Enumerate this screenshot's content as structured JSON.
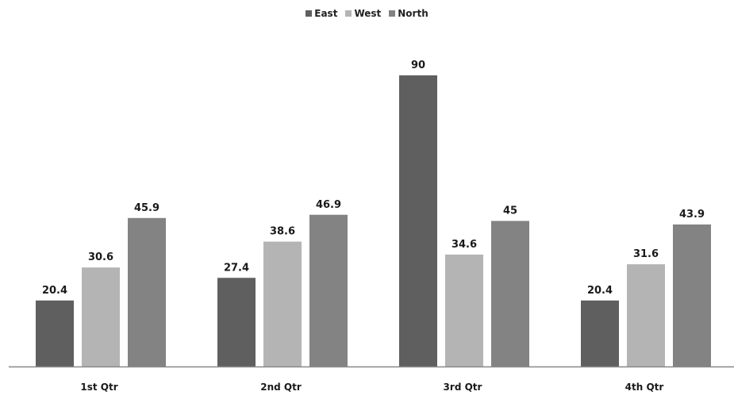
{
  "chart_data": {
    "type": "bar",
    "title": "",
    "xlabel": "",
    "ylabel": "",
    "categories": [
      "1st Qtr",
      "2nd Qtr",
      "3rd Qtr",
      "4th Qtr"
    ],
    "series": [
      {
        "name": "East",
        "values": [
          20.4,
          27.4,
          90,
          20.4
        ],
        "value_labels": [
          "20.4",
          "27.4",
          "90",
          "20.4"
        ],
        "color": "#5f5f5f"
      },
      {
        "name": "West",
        "values": [
          30.6,
          38.6,
          34.6,
          31.6
        ],
        "value_labels": [
          "30.6",
          "38.6",
          "34.6",
          "31.6"
        ],
        "color": "#b4b4b4"
      },
      {
        "name": "North",
        "values": [
          45.9,
          46.9,
          45,
          43.9
        ],
        "value_labels": [
          "45.9",
          "46.9",
          "45",
          "43.9"
        ],
        "color": "#838383"
      }
    ],
    "ylim": [
      0,
      90
    ],
    "grid": false,
    "legend_position": "top-center",
    "axis_color": "#888888"
  }
}
